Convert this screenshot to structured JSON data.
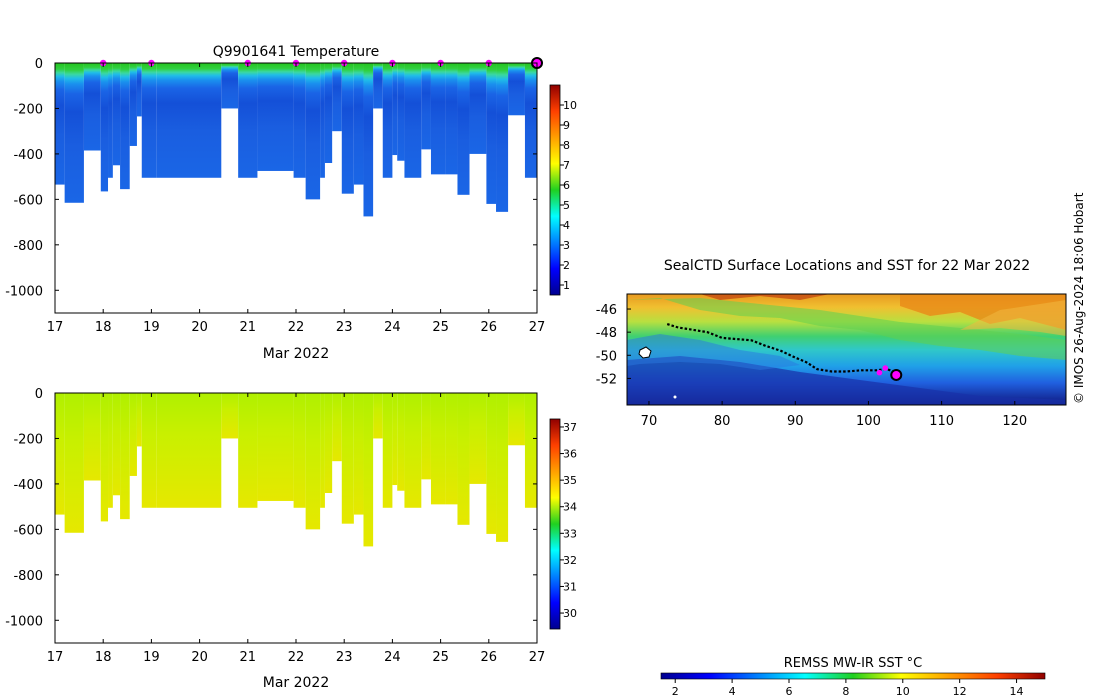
{
  "chart_data": [
    {
      "type": "heatmap",
      "title": "Q9901641  Temperature",
      "xlabel": "Mar 2022",
      "ylabel": "",
      "x_ticks": [
        "17",
        "18",
        "19",
        "20",
        "21",
        "22",
        "23",
        "24",
        "25",
        "26",
        "27"
      ],
      "y_ticks": [
        "0",
        "-200",
        "-400",
        "-600",
        "-800",
        "-1000"
      ],
      "xlim": [
        17,
        27
      ],
      "ylim": [
        -1100,
        0
      ],
      "colorbar": {
        "min": 0.5,
        "max": 11,
        "ticks": [
          "1",
          "2",
          "3",
          "4",
          "5",
          "6",
          "7",
          "8",
          "9",
          "10"
        ],
        "colormap": "jet"
      },
      "surface_markers_day": [
        18,
        19,
        21,
        22,
        23,
        24,
        25,
        26
      ],
      "last_marker_day": 27,
      "marker_color": "#ff00ff",
      "data_gap_days": [
        19.8,
        20.45
      ],
      "profiles": [
        {
          "day": 17.0,
          "max_depth": 535
        },
        {
          "day": 17.2,
          "max_depth": 615
        },
        {
          "day": 17.6,
          "max_depth": 385
        },
        {
          "day": 17.95,
          "max_depth": 565
        },
        {
          "day": 18.1,
          "max_depth": 505
        },
        {
          "day": 18.2,
          "max_depth": 450
        },
        {
          "day": 18.35,
          "max_depth": 555
        },
        {
          "day": 18.55,
          "max_depth": 365
        },
        {
          "day": 18.7,
          "max_depth": 235
        },
        {
          "day": 18.8,
          "max_depth": 505
        },
        {
          "day": 19.1,
          "max_depth": 505
        },
        {
          "day": 20.45,
          "max_depth": 200
        },
        {
          "day": 20.8,
          "max_depth": 505
        },
        {
          "day": 21.2,
          "max_depth": 475
        },
        {
          "day": 21.95,
          "max_depth": 505
        },
        {
          "day": 22.2,
          "max_depth": 600
        },
        {
          "day": 22.5,
          "max_depth": 505
        },
        {
          "day": 22.6,
          "max_depth": 440
        },
        {
          "day": 22.75,
          "max_depth": 300
        },
        {
          "day": 22.95,
          "max_depth": 575
        },
        {
          "day": 23.2,
          "max_depth": 535
        },
        {
          "day": 23.4,
          "max_depth": 675
        },
        {
          "day": 23.6,
          "max_depth": 200
        },
        {
          "day": 23.8,
          "max_depth": 505
        },
        {
          "day": 24.0,
          "max_depth": 405
        },
        {
          "day": 24.1,
          "max_depth": 430
        },
        {
          "day": 24.25,
          "max_depth": 505
        },
        {
          "day": 24.6,
          "max_depth": 380
        },
        {
          "day": 24.8,
          "max_depth": 490
        },
        {
          "day": 25.1,
          "max_depth": 490
        },
        {
          "day": 25.35,
          "max_depth": 580
        },
        {
          "day": 25.6,
          "max_depth": 400
        },
        {
          "day": 25.95,
          "max_depth": 620
        },
        {
          "day": 26.15,
          "max_depth": 655
        },
        {
          "day": 26.4,
          "max_depth": 230
        },
        {
          "day": 26.75,
          "max_depth": 505
        }
      ]
    },
    {
      "type": "heatmap",
      "title": "",
      "xlabel": "Mar 2022",
      "ylabel": "",
      "x_ticks": [
        "17",
        "18",
        "19",
        "20",
        "21",
        "22",
        "23",
        "24",
        "25",
        "26",
        "27"
      ],
      "y_ticks": [
        "0",
        "-200",
        "-400",
        "-600",
        "-800",
        "-1000"
      ],
      "xlim": [
        17,
        27
      ],
      "ylim": [
        -1100,
        0
      ],
      "colorbar": {
        "min": 29.4,
        "max": 37.3,
        "ticks": [
          "30",
          "31",
          "32",
          "33",
          "34",
          "35",
          "36",
          "37"
        ],
        "colormap": "jet"
      }
    },
    {
      "type": "heatmap",
      "title": "SealCTD Surface Locations and SST for 22 Mar 2022",
      "x_ticks": [
        "70",
        "80",
        "90",
        "100",
        "110",
        "120"
      ],
      "y_ticks": [
        "-46",
        "-48",
        "-50",
        "-52"
      ],
      "xlim": [
        67,
        127
      ],
      "ylim": [
        -54.3,
        -44.7
      ],
      "track_color": "#000000",
      "track": [
        [
          72.5,
          -47.3
        ],
        [
          74,
          -47.6
        ],
        [
          76,
          -47.8
        ],
        [
          78,
          -48.0
        ],
        [
          80,
          -48.5
        ],
        [
          82,
          -48.6
        ],
        [
          84,
          -48.7
        ],
        [
          86,
          -49.2
        ],
        [
          88,
          -49.6
        ],
        [
          90,
          -50.2
        ],
        [
          91.5,
          -50.6
        ],
        [
          93,
          -51.2
        ],
        [
          95,
          -51.4
        ],
        [
          97,
          -51.4
        ],
        [
          99,
          -51.3
        ],
        [
          101,
          -51.3
        ],
        [
          102.5,
          -51.2
        ],
        [
          103.5,
          -51.4
        ]
      ],
      "track_markers": [
        [
          101.5,
          -51.5
        ],
        [
          102.3,
          -51.1
        ]
      ],
      "current_position": [
        103.8,
        -51.7
      ],
      "colorbar": {
        "label": "REMSS MW-IR SST °C",
        "min": 1.5,
        "max": 15,
        "ticks": [
          "2",
          "4",
          "6",
          "8",
          "10",
          "12",
          "14"
        ],
        "colormap": "jet"
      }
    }
  ],
  "credit": "© IMOS 26-Aug-2024 18:06 Hobart"
}
